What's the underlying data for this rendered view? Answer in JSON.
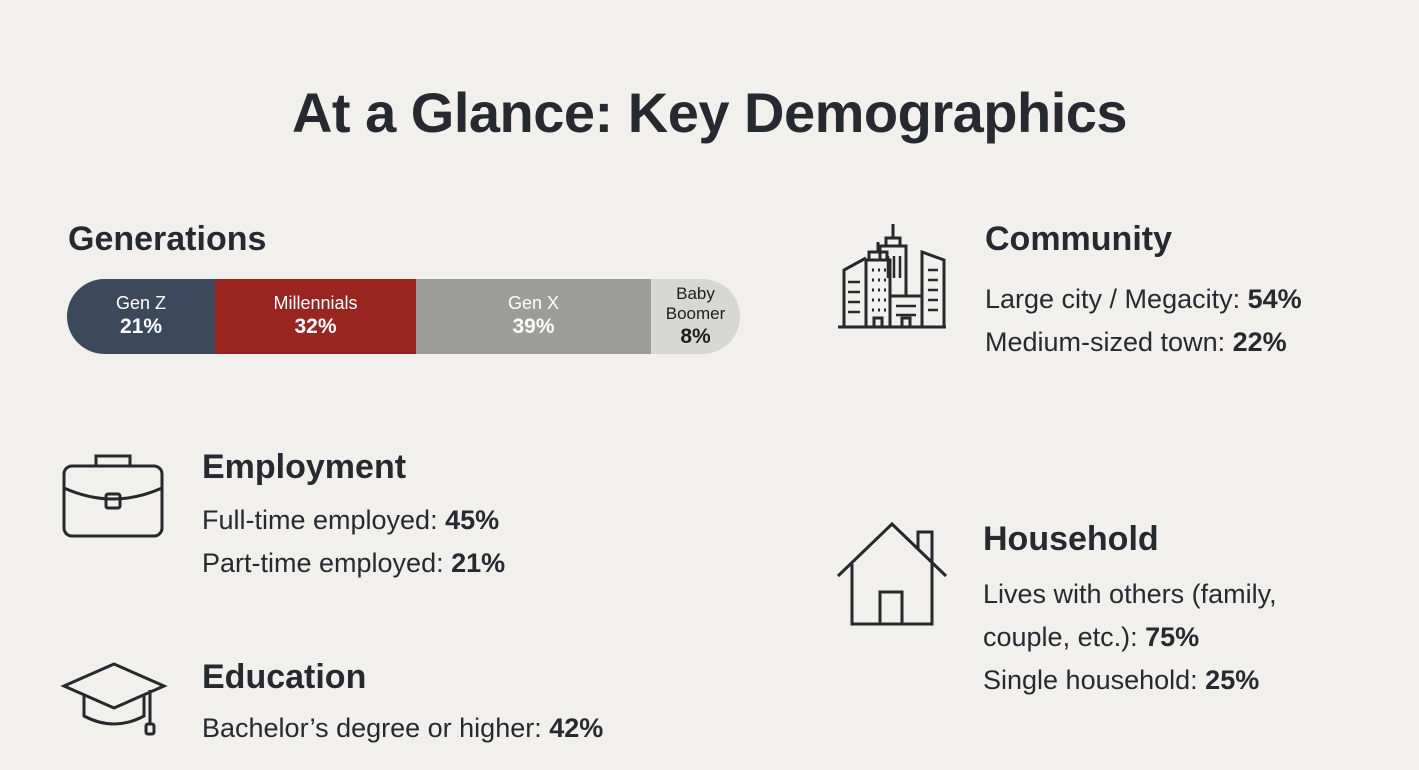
{
  "title": "At a Glance: Key Demographics",
  "generations": {
    "heading": "Generations"
  },
  "chart_data": {
    "type": "bar",
    "stacked": true,
    "title": "Generations",
    "categories": [
      "Gen Z",
      "Millennials",
      "Gen X",
      "Baby Boomer"
    ],
    "values": [
      21,
      32,
      39,
      8
    ],
    "value_labels": [
      "21%",
      "32%",
      "39%",
      "8%"
    ],
    "unit": "%",
    "colors": [
      "#3c495d",
      "#982520",
      "#9c9c9a",
      "#d7d7d5"
    ]
  },
  "community": {
    "heading": "Community",
    "icon": "city-buildings-icon",
    "lines": [
      {
        "label": "Large city / Megacity: ",
        "value": "54%"
      },
      {
        "label": "Medium-sized town: ",
        "value": "22%"
      }
    ]
  },
  "employment": {
    "heading": "Employment",
    "icon": "briefcase-icon",
    "lines": [
      {
        "label": "Full-time employed: ",
        "value": "45%"
      },
      {
        "label": "Part-time employed: ",
        "value": "21%"
      }
    ]
  },
  "household": {
    "heading": "Household",
    "icon": "house-icon",
    "line1": "Lives with others (family,",
    "line2": "couple, etc.): ",
    "value1": "75%",
    "line3": "Single household: ",
    "value2": "25%"
  },
  "education": {
    "heading": "Education",
    "icon": "graduation-cap-icon",
    "lines": [
      {
        "label": "Bachelor’s degree or higher: ",
        "value": "42%"
      }
    ]
  }
}
